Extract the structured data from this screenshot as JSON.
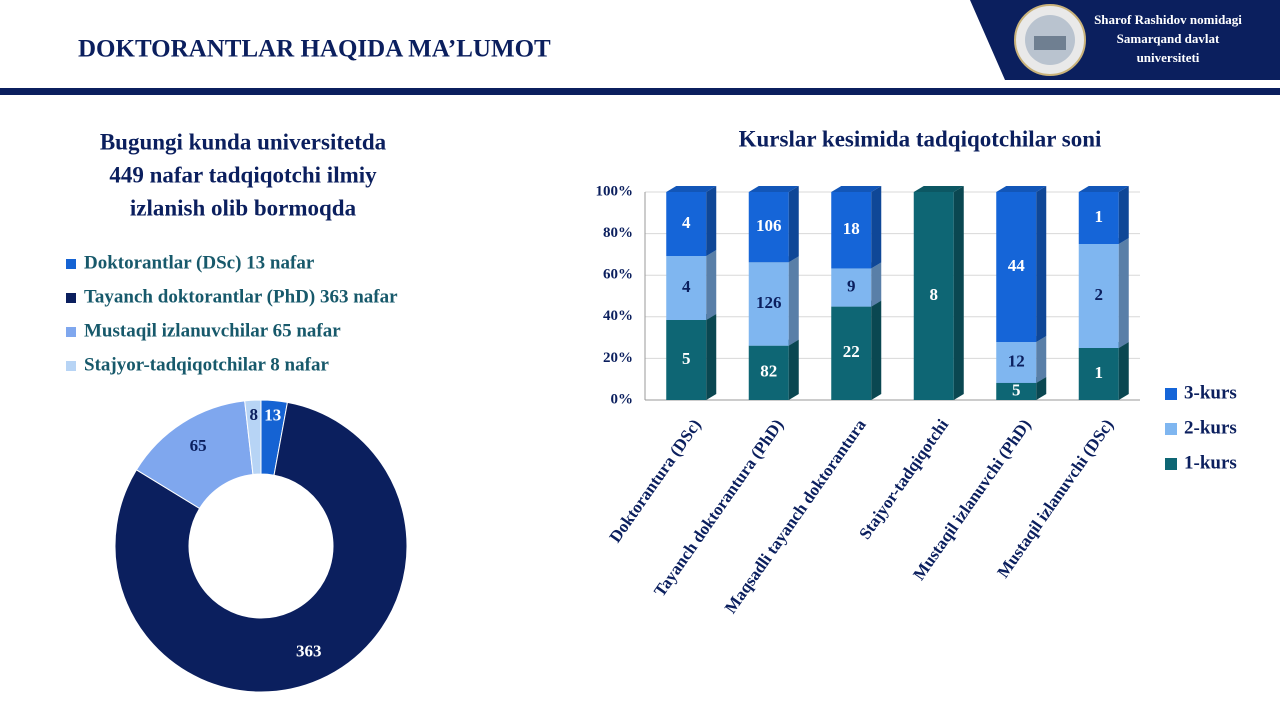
{
  "header": {
    "title": "DOKTORANTLAR HAQIDA MA’LUMOT",
    "university": [
      "Sharof Rashidov nomidagi",
      "Samarqand davlat",
      "universiteti"
    ]
  },
  "chart_data": [
    {
      "type": "donut",
      "title": [
        "Bugungi kunda universitetda",
        "449 nafar tadqiqotchi ilmiy",
        "izlanish olib bormoqda"
      ],
      "categories": [
        "Doktorantlar (DSc) 13 nafar",
        "Tayanch doktorantlar (PhD) 363 nafar",
        "Mustaqil izlanuvchilar 65 nafar",
        "Stajyor-tadqiqotchilar 8 nafar"
      ],
      "values": [
        13,
        363,
        65,
        8
      ],
      "colors": [
        "#1563d3",
        "#0b1f5e",
        "#7fa7ee",
        "#b7d4f5"
      ],
      "legend": "top"
    },
    {
      "type": "bar",
      "stacking": "percent",
      "title": "Kurslar kesimida tadqiqotchilar soni",
      "categories": [
        "Doktorantura (DSc)",
        "Tayanch doktorantura (PhD)",
        "Maqsadli tayanch doktorantura",
        "Stajyor-tadqiqotchi",
        "Mustaqil izlanuvchi (PhD)",
        "Mustaqil izlanuvchi (DSc)"
      ],
      "series": [
        {
          "name": "1-kurs",
          "color": "#0e6674",
          "values": [
            5,
            82,
            22,
            8,
            5,
            1
          ]
        },
        {
          "name": "2-kurs",
          "color": "#7fb6f0",
          "values": [
            4,
            126,
            9,
            null,
            12,
            2
          ]
        },
        {
          "name": "3-kurs",
          "color": "#1565d8",
          "values": [
            4,
            106,
            18,
            null,
            44,
            1
          ]
        }
      ],
      "ylim": [
        0,
        100
      ],
      "yticks": [
        {
          "value": 0,
          "label": "0%"
        },
        {
          "value": 20,
          "label": "20%"
        },
        {
          "value": 40,
          "label": "40%"
        },
        {
          "value": 60,
          "label": "60%"
        },
        {
          "value": 80,
          "label": "80%"
        },
        {
          "value": 100,
          "label": "100%"
        }
      ],
      "grid": true,
      "legend": "right"
    }
  ]
}
